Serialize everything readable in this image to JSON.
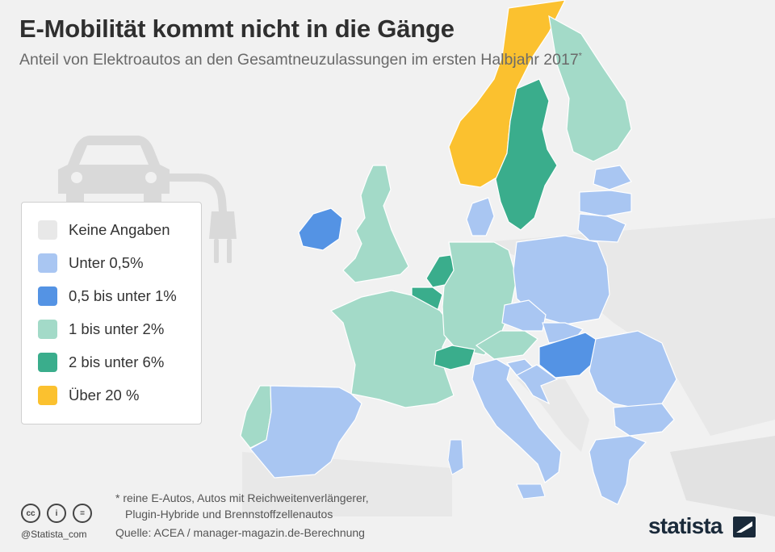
{
  "header": {
    "title": "E-Mobilität kommt nicht in die Gänge",
    "subtitle": "Anteil von Elektroautos an den Gesamtneuzulassungen im ersten Halbjahr 2017",
    "subtitle_mark": "*"
  },
  "legend": {
    "items": [
      {
        "label": "Keine Angaben",
        "color": "#e8e8e8"
      },
      {
        "label": "Unter 0,5%",
        "color": "#a9c6f2"
      },
      {
        "label": "0,5 bis unter 1%",
        "color": "#5493e4"
      },
      {
        "label": "1 bis unter 2%",
        "color": "#a3dac8"
      },
      {
        "label": "2 bis unter 6%",
        "color": "#3aad8c"
      },
      {
        "label": "Über 20 %",
        "color": "#fbc12f"
      }
    ]
  },
  "map": {
    "countries": [
      {
        "name": "Norwegen",
        "category": "Über 20 %"
      },
      {
        "name": "Schweden",
        "category": "2 bis unter 6%"
      },
      {
        "name": "Finnland",
        "category": "1 bis unter 2%"
      },
      {
        "name": "Dänemark",
        "category": "Unter 0,5%"
      },
      {
        "name": "Großbritannien",
        "category": "1 bis unter 2%"
      },
      {
        "name": "Irland",
        "category": "0,5 bis unter 1%"
      },
      {
        "name": "Niederlande",
        "category": "2 bis unter 6%"
      },
      {
        "name": "Belgien",
        "category": "2 bis unter 6%"
      },
      {
        "name": "Deutschland",
        "category": "1 bis unter 2%"
      },
      {
        "name": "Frankreich",
        "category": "1 bis unter 2%"
      },
      {
        "name": "Schweiz",
        "category": "2 bis unter 6%"
      },
      {
        "name": "Österreich",
        "category": "1 bis unter 2%"
      },
      {
        "name": "Portugal",
        "category": "1 bis unter 2%"
      },
      {
        "name": "Spanien",
        "category": "Unter 0,5%"
      },
      {
        "name": "Italien",
        "category": "Unter 0,5%"
      },
      {
        "name": "Polen",
        "category": "Unter 0,5%"
      },
      {
        "name": "Tschechien",
        "category": "Unter 0,5%"
      },
      {
        "name": "Slowakei",
        "category": "Unter 0,5%"
      },
      {
        "name": "Ungarn",
        "category": "0,5 bis unter 1%"
      },
      {
        "name": "Slowenien",
        "category": "Unter 0,5%"
      },
      {
        "name": "Kroatien",
        "category": "Unter 0,5%"
      },
      {
        "name": "Rumänien",
        "category": "Unter 0,5%"
      },
      {
        "name": "Bulgarien",
        "category": "Unter 0,5%"
      },
      {
        "name": "Griechenland",
        "category": "Unter 0,5%"
      },
      {
        "name": "Estland",
        "category": "Unter 0,5%"
      },
      {
        "name": "Lettland",
        "category": "Unter 0,5%"
      },
      {
        "name": "Litauen",
        "category": "Unter 0,5%"
      }
    ]
  },
  "footer": {
    "note_line1": "* reine E-Autos, Autos mit Reichweitenverlängerer,",
    "note_line2": "Plugin-Hybride und Brennstoffzellenautos",
    "source": "Quelle: ACEA / manager-magazin.de-Berechnung",
    "handle": "@Statista_com",
    "brand": "statista",
    "cc_icons": [
      {
        "icon": "cc-icon",
        "text": "cc"
      },
      {
        "icon": "by-icon",
        "text": "i"
      },
      {
        "icon": "nd-icon",
        "text": "="
      }
    ]
  }
}
